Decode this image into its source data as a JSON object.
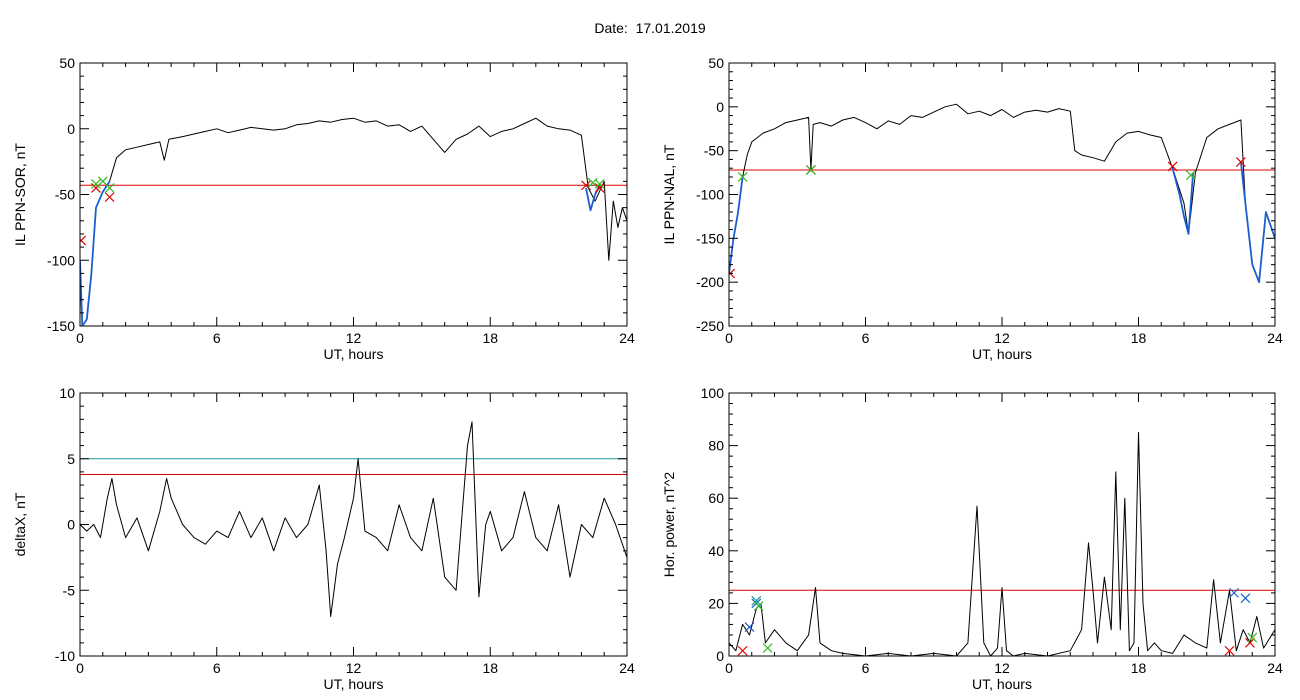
{
  "page": {
    "title": "Date:  17.01.2019"
  },
  "chart_data": [
    {
      "id": "sor",
      "type": "line",
      "ylabel": "IL PPN-SOR, nT",
      "xlabel": "UT, hours",
      "xlim": [
        0,
        24
      ],
      "ylim": [
        -150,
        50
      ],
      "xticks": [
        0,
        6,
        12,
        18,
        24
      ],
      "yticks": [
        -150,
        -100,
        -50,
        0,
        50
      ],
      "threshold_lines": [
        {
          "value": -43,
          "color": "#dd0000"
        }
      ],
      "series": [
        {
          "color": "#000000",
          "x": [
            0,
            0.1,
            0.3,
            0.5,
            0.7,
            1.0,
            1.3,
            1.6,
            2.0,
            2.5,
            3.0,
            3.5,
            3.7,
            3.9,
            4.5,
            5.0,
            5.5,
            6.0,
            6.5,
            7.0,
            7.5,
            8.0,
            8.5,
            9.0,
            9.5,
            10.0,
            10.5,
            11.0,
            11.5,
            12.0,
            12.5,
            13.0,
            13.5,
            14.0,
            14.5,
            15.0,
            15.5,
            16.0,
            16.5,
            17.0,
            17.5,
            18.0,
            18.5,
            19.0,
            19.5,
            20.0,
            20.5,
            21.0,
            21.5,
            22.0,
            22.3,
            22.6,
            23.0,
            23.2,
            23.4,
            23.6,
            23.8,
            24.0
          ],
          "y": [
            -100,
            -150,
            -145,
            -110,
            -60,
            -48,
            -40,
            -22,
            -16,
            -14,
            -12,
            -10,
            -24,
            -8,
            -6,
            -4,
            -2,
            0,
            -3,
            -1,
            1,
            0,
            -1,
            0,
            3,
            4,
            6,
            5,
            7,
            8,
            5,
            6,
            2,
            3,
            -2,
            2,
            -8,
            -18,
            -8,
            -4,
            2,
            -6,
            -2,
            0,
            4,
            8,
            2,
            0,
            -1,
            -5,
            -45,
            -55,
            -40,
            -100,
            -55,
            -75,
            -60,
            -70
          ]
        },
        {
          "color": "#1a5fd0",
          "x": [
            0,
            0.1,
            0.3,
            0.5,
            0.7,
            1.0,
            1.3
          ],
          "y": [
            -100,
            -150,
            -145,
            -110,
            -60,
            -48,
            -40
          ]
        },
        {
          "color": "#1a5fd0",
          "x": [
            22.2,
            22.4,
            22.6,
            22.8
          ],
          "y": [
            -45,
            -62,
            -50,
            -43
          ]
        }
      ],
      "markers": [
        {
          "x": 0.05,
          "y": -85,
          "color": "#dd0000"
        },
        {
          "x": 0.7,
          "y": -45,
          "color": "#dd0000"
        },
        {
          "x": 1.3,
          "y": -52,
          "color": "#dd0000"
        },
        {
          "x": 0.7,
          "y": -42,
          "color": "#33bb22"
        },
        {
          "x": 1.0,
          "y": -40,
          "color": "#33bb22"
        },
        {
          "x": 1.3,
          "y": -45,
          "color": "#33bb22"
        },
        {
          "x": 22.2,
          "y": -43,
          "color": "#dd0000"
        },
        {
          "x": 22.8,
          "y": -45,
          "color": "#dd0000"
        },
        {
          "x": 22.5,
          "y": -41,
          "color": "#33bb22"
        },
        {
          "x": 22.8,
          "y": -42,
          "color": "#33bb22"
        }
      ]
    },
    {
      "id": "nal",
      "type": "line",
      "ylabel": "IL PPN-NAL, nT",
      "xlabel": "UT, hours",
      "xlim": [
        0,
        24
      ],
      "ylim": [
        -250,
        50
      ],
      "xticks": [
        0,
        6,
        12,
        18,
        24
      ],
      "yticks": [
        -250,
        -200,
        -150,
        -100,
        -50,
        0,
        50
      ],
      "threshold_lines": [
        {
          "value": -72,
          "color": "#dd0000"
        }
      ],
      "series": [
        {
          "color": "#000000",
          "x": [
            0,
            0.2,
            0.4,
            0.6,
            0.8,
            1.0,
            1.5,
            2.0,
            2.5,
            3.0,
            3.5,
            3.6,
            3.7,
            4.0,
            4.5,
            5.0,
            5.5,
            6.0,
            6.5,
            7.0,
            7.5,
            8.0,
            8.5,
            9.0,
            9.5,
            10.0,
            10.5,
            11.0,
            11.5,
            12.0,
            12.5,
            13.0,
            13.5,
            14.0,
            14.5,
            15.0,
            15.2,
            15.5,
            16.0,
            16.5,
            17.0,
            17.5,
            18.0,
            18.5,
            19.0,
            19.5,
            20.0,
            20.2,
            20.5,
            21.0,
            21.5,
            22.0,
            22.5,
            22.7,
            23.0,
            23.3,
            23.6,
            24.0
          ],
          "y": [
            -190,
            -150,
            -120,
            -80,
            -55,
            -40,
            -30,
            -25,
            -18,
            -15,
            -12,
            -72,
            -20,
            -18,
            -22,
            -15,
            -12,
            -18,
            -25,
            -16,
            -20,
            -10,
            -12,
            -6,
            0,
            3,
            -8,
            -5,
            -10,
            -3,
            -12,
            -6,
            -4,
            -6,
            -2,
            -5,
            -50,
            -55,
            -58,
            -62,
            -40,
            -30,
            -28,
            -32,
            -35,
            -70,
            -110,
            -145,
            -75,
            -35,
            -25,
            -20,
            -15,
            -110,
            -180,
            -200,
            -120,
            -150
          ]
        },
        {
          "color": "#1a5fd0",
          "x": [
            0,
            0.2,
            0.4,
            0.6
          ],
          "y": [
            -190,
            -150,
            -120,
            -80
          ]
        },
        {
          "color": "#1a5fd0",
          "x": [
            19.5,
            19.8,
            20.0,
            20.2,
            20.4
          ],
          "y": [
            -70,
            -100,
            -125,
            -145,
            -75
          ]
        },
        {
          "color": "#1a5fd0",
          "x": [
            22.5,
            22.7,
            23.0,
            23.3,
            23.6,
            24.0
          ],
          "y": [
            -63,
            -110,
            -180,
            -200,
            -120,
            -150
          ]
        }
      ],
      "markers": [
        {
          "x": 0.05,
          "y": -190,
          "color": "#dd0000"
        },
        {
          "x": 0.6,
          "y": -80,
          "color": "#33bb22"
        },
        {
          "x": 3.6,
          "y": -72,
          "color": "#dd0000"
        },
        {
          "x": 3.6,
          "y": -72,
          "color": "#33bb22"
        },
        {
          "x": 19.5,
          "y": -68,
          "color": "#dd0000"
        },
        {
          "x": 20.3,
          "y": -78,
          "color": "#33bb22"
        },
        {
          "x": 22.5,
          "y": -63,
          "color": "#dd0000"
        }
      ]
    },
    {
      "id": "deltax",
      "type": "line",
      "ylabel": "deltaX, nT",
      "xlabel": "UT, hours",
      "xlim": [
        0,
        24
      ],
      "ylim": [
        -10,
        10
      ],
      "xticks": [
        0,
        6,
        12,
        18,
        24
      ],
      "yticks": [
        -10,
        -5,
        0,
        5,
        10
      ],
      "threshold_lines": [
        {
          "value": 5,
          "color": "#1a9a9a"
        },
        {
          "value": 3.8,
          "color": "#dd0000"
        }
      ],
      "series": [
        {
          "color": "#000000",
          "x": [
            0,
            0.3,
            0.6,
            0.9,
            1.2,
            1.4,
            1.6,
            2.0,
            2.5,
            3.0,
            3.5,
            3.8,
            4.0,
            4.5,
            5.0,
            5.5,
            6.0,
            6.5,
            7.0,
            7.5,
            8.0,
            8.5,
            9.0,
            9.5,
            10.0,
            10.5,
            10.8,
            11.0,
            11.3,
            11.6,
            12.0,
            12.2,
            12.5,
            13.0,
            13.5,
            14.0,
            14.5,
            15.0,
            15.5,
            16.0,
            16.5,
            17.0,
            17.2,
            17.5,
            17.8,
            18.0,
            18.5,
            19.0,
            19.5,
            20.0,
            20.5,
            21.0,
            21.5,
            22.0,
            22.5,
            23.0,
            23.5,
            24.0
          ],
          "y": [
            0,
            -0.5,
            0,
            -1,
            2,
            3.5,
            1.5,
            -1,
            0.5,
            -2,
            1,
            3.5,
            2,
            0,
            -1,
            -1.5,
            -0.5,
            -1,
            1,
            -1,
            0.5,
            -2,
            0.5,
            -1,
            0,
            3,
            -2,
            -7,
            -3,
            -1,
            2,
            5,
            -0.5,
            -1,
            -2,
            1.5,
            -1,
            -2,
            2,
            -4,
            -5,
            6,
            7.8,
            -5.5,
            0,
            1,
            -2,
            -1,
            2.5,
            -1,
            -2,
            1.5,
            -4,
            0,
            -1,
            2,
            0,
            -2.5
          ]
        }
      ],
      "markers": []
    },
    {
      "id": "horpower",
      "type": "line",
      "ylabel": "Hor. power, nT^2",
      "xlabel": "UT, hours",
      "xlim": [
        0,
        24
      ],
      "ylim": [
        0,
        100
      ],
      "xticks": [
        0,
        6,
        12,
        18,
        24
      ],
      "yticks": [
        0,
        20,
        40,
        60,
        80,
        100
      ],
      "threshold_lines": [
        {
          "value": 25,
          "color": "#dd0000"
        }
      ],
      "series": [
        {
          "color": "#000000",
          "x": [
            0,
            0.3,
            0.6,
            0.9,
            1.2,
            1.4,
            1.6,
            2.0,
            2.5,
            3.0,
            3.5,
            3.8,
            4.0,
            4.5,
            5.0,
            6.0,
            7.0,
            8.0,
            9.0,
            10.0,
            10.5,
            10.9,
            11.2,
            11.5,
            11.8,
            12.0,
            12.2,
            12.5,
            13.0,
            14.0,
            15.0,
            15.5,
            15.8,
            16.0,
            16.2,
            16.5,
            16.8,
            17.0,
            17.2,
            17.4,
            17.6,
            17.8,
            18.0,
            18.2,
            18.4,
            18.7,
            19.0,
            19.5,
            20.0,
            20.5,
            21.0,
            21.3,
            21.6,
            22.0,
            22.3,
            22.6,
            22.9,
            23.2,
            23.5,
            24.0
          ],
          "y": [
            5,
            2,
            12,
            8,
            18,
            20,
            5,
            10,
            5,
            2,
            8,
            26,
            5,
            2,
            1,
            0,
            1,
            0,
            1,
            0,
            5,
            57,
            5,
            0,
            3,
            26,
            2,
            0,
            1,
            0,
            2,
            10,
            43,
            25,
            5,
            30,
            10,
            70,
            10,
            60,
            2,
            5,
            85,
            20,
            2,
            5,
            2,
            1,
            8,
            5,
            3,
            29,
            5,
            25,
            2,
            10,
            5,
            15,
            3,
            10
          ]
        }
      ],
      "markers": [
        {
          "x": 0.6,
          "y": 2,
          "color": "#dd0000"
        },
        {
          "x": 0.9,
          "y": 11,
          "color": "#1a5fd0"
        },
        {
          "x": 1.2,
          "y": 20,
          "color": "#1a5fd0"
        },
        {
          "x": 1.2,
          "y": 21,
          "color": "#1a9a9a"
        },
        {
          "x": 1.3,
          "y": 19,
          "color": "#33bb22"
        },
        {
          "x": 1.7,
          "y": 3,
          "color": "#33bb22"
        },
        {
          "x": 22.0,
          "y": 2,
          "color": "#dd0000"
        },
        {
          "x": 22.2,
          "y": 24,
          "color": "#1a5fd0"
        },
        {
          "x": 22.7,
          "y": 22,
          "color": "#1a5fd0"
        },
        {
          "x": 22.9,
          "y": 5,
          "color": "#dd0000"
        },
        {
          "x": 23.0,
          "y": 7,
          "color": "#33bb22"
        }
      ]
    }
  ]
}
